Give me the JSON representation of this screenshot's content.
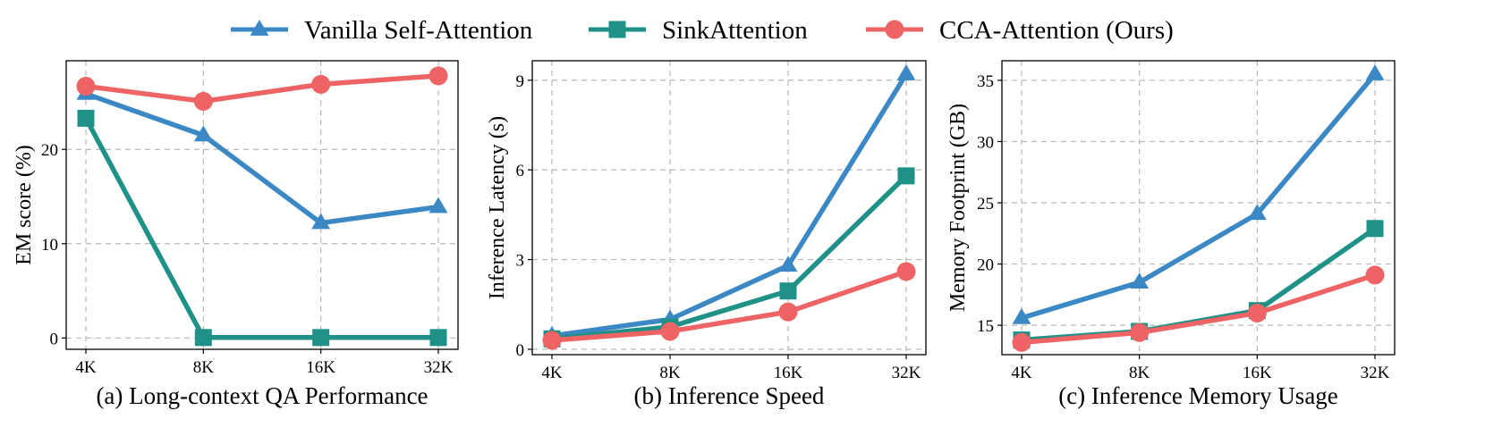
{
  "legend": [
    {
      "name": "Vanilla Self-Attention",
      "color": "#3b88c4",
      "marker": "triangle"
    },
    {
      "name": "SinkAttention",
      "color": "#1f9187",
      "marker": "square"
    },
    {
      "name": "CCA-Attention (Ours)",
      "color": "#ee6363",
      "marker": "circle"
    }
  ],
  "chart_data": [
    {
      "type": "line",
      "caption": "(a) Long-context QA Performance",
      "xlabel": "",
      "ylabel": "EM score (%)",
      "categories": [
        "4K",
        "8K",
        "16K",
        "32K"
      ],
      "ylim": [
        -1.2,
        29.4
      ],
      "yticks": [
        0,
        10,
        20
      ],
      "grid": true,
      "series": [
        {
          "name": "Vanilla Self-Attention",
          "values": [
            25.9,
            21.5,
            12.2,
            13.9
          ]
        },
        {
          "name": "SinkAttention",
          "values": [
            23.3,
            0.05,
            0.05,
            0.05
          ]
        },
        {
          "name": "CCA-Attention (Ours)",
          "values": [
            26.7,
            25.1,
            26.9,
            27.8
          ]
        }
      ]
    },
    {
      "type": "line",
      "caption": "(b) Inference Speed",
      "xlabel": "",
      "ylabel": "Inference Latency (s)",
      "categories": [
        "4K",
        "8K",
        "16K",
        "32K"
      ],
      "ylim": [
        -0.18,
        9.65
      ],
      "yticks": [
        0,
        3,
        6,
        9
      ],
      "grid": true,
      "series": [
        {
          "name": "Vanilla Self-Attention",
          "values": [
            0.45,
            1.0,
            2.8,
            9.2
          ]
        },
        {
          "name": "SinkAttention",
          "values": [
            0.35,
            0.75,
            1.95,
            5.8
          ]
        },
        {
          "name": "CCA-Attention (Ours)",
          "values": [
            0.3,
            0.6,
            1.25,
            2.6
          ]
        }
      ]
    },
    {
      "type": "line",
      "caption": "(c) Inference Memory Usage",
      "xlabel": "",
      "ylabel": "Memory Footprint (GB)",
      "categories": [
        "4K",
        "8K",
        "16K",
        "32K"
      ],
      "ylim": [
        12.6,
        36.6
      ],
      "yticks": [
        15,
        20,
        25,
        30,
        35
      ],
      "grid": true,
      "series": [
        {
          "name": "Vanilla Self-Attention",
          "values": [
            15.6,
            18.5,
            24.1,
            35.5
          ]
        },
        {
          "name": "SinkAttention",
          "values": [
            13.8,
            14.5,
            16.2,
            22.9
          ]
        },
        {
          "name": "CCA-Attention (Ours)",
          "values": [
            13.6,
            14.4,
            16.0,
            19.1
          ]
        }
      ]
    }
  ]
}
